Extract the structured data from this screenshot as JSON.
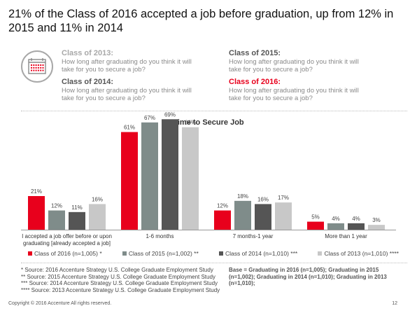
{
  "headline": "21% of the Class of 2016 accepted a job before graduation, up from 12% in 2015 and 11% in 2014",
  "questions": [
    {
      "title": "Class of 2013:",
      "text": "How long after graduating do you think it will take for you to secure a job?",
      "color": "#a8a8a8"
    },
    {
      "title": "Class of 2015:",
      "text": "How long after graduating do you think it will take for you to secure a job?",
      "color": "#555555"
    },
    {
      "title": "Class of 2014:",
      "text": "How long after graduating do you think it will take for you to secure a job?",
      "color": "#555555"
    },
    {
      "title": "Class of 2016:",
      "text": "How long after graduating do you think it will take for you to secure a job?",
      "color": "#e8001c"
    }
  ],
  "chart_data": {
    "type": "bar",
    "title": "Time to Secure Job",
    "categories": [
      [
        "I accepted a job offer before or upon",
        "graduating [already accepted a job]"
      ],
      [
        "1-6 months"
      ],
      [
        "7 months-1 year"
      ],
      [
        "More than 1 year"
      ]
    ],
    "series": [
      {
        "name": "Class of 2016 (n=1,005) *",
        "color": "#e8001c",
        "values": [
          21,
          61,
          12,
          5
        ]
      },
      {
        "name": "Class of 2015 (n=1,002) **",
        "color": "#7f8c8a",
        "values": [
          12,
          67,
          18,
          4
        ]
      },
      {
        "name": "Class of 2014 (n=1,010) ***",
        "color": "#555555",
        "values": [
          11,
          69,
          16,
          4
        ]
      },
      {
        "name": "Class of 2013 (n=1,010) ****",
        "color": "#c8c8c8",
        "values": [
          16,
          64,
          17,
          3
        ]
      }
    ],
    "value_suffix": "%",
    "ylim": [
      0,
      70
    ],
    "grid": false
  },
  "sources": [
    "* Source: 2016 Accenture Strategy U.S. College Graduate Employment Study",
    "** Source: 2015 Accenture Strategy U.S. College Graduate Employment Study",
    "*** Source: 2014 Accenture Strategy U.S. College Graduate Employment Study",
    "**** Source: 2013 Accenture Strategy U.S. College Graduate Employment Study"
  ],
  "base_note": "Base = Graduating in 2016 (n=1,005); Graduating in 2015 (n=1,002); Graduating in 2014 (n=1,010); Graduating in 2013 (n=1,010);",
  "footer": {
    "copyright": "Copyright © 2016 Accenture  All rights reserved.",
    "page": "12"
  },
  "icon": {
    "name": "calendar-icon",
    "color": "#e8001c"
  }
}
